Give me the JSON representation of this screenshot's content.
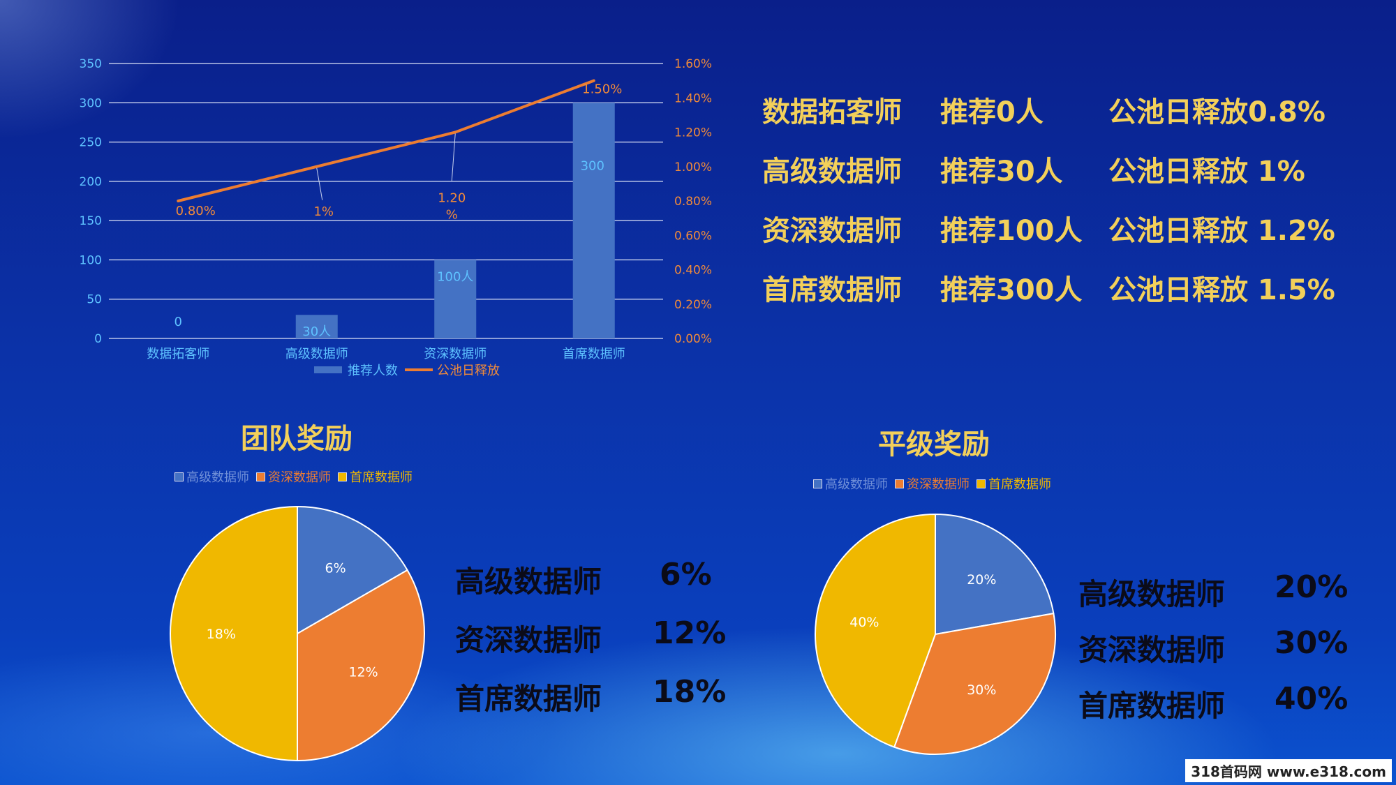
{
  "colors": {
    "bar": "#4472c4",
    "line": "#ed7d31",
    "gold": "#f3d05a",
    "pie": [
      "#4472c4",
      "#ed7d31",
      "#f0b800"
    ],
    "axis_left": "#5ec2ff",
    "axis_right": "#f08a3a"
  },
  "chart_data": [
    {
      "type": "bar+line",
      "categories": [
        "数据拓客师",
        "高级数据师",
        "资深数据师",
        "首席数据师"
      ],
      "series": [
        {
          "name": "推荐人数",
          "type": "bar",
          "axis": "left",
          "values": [
            0,
            30,
            100,
            300
          ],
          "labels": [
            "0",
            "30人",
            "100人",
            "300"
          ]
        },
        {
          "name": "公池日释放",
          "type": "line",
          "axis": "right",
          "values": [
            0.8,
            1.0,
            1.2,
            1.5
          ],
          "labels": [
            "0.80%",
            "1%",
            "1.20\n%",
            "1.50%"
          ]
        }
      ],
      "y_left": {
        "min": 0,
        "max": 350,
        "ticks": [
          "0",
          "50",
          "100",
          "150",
          "200",
          "250",
          "300",
          "350"
        ]
      },
      "y_right": {
        "min": 0,
        "max": 1.6,
        "ticks": [
          "0.00%",
          "0.20%",
          "0.40%",
          "0.60%",
          "0.80%",
          "1.00%",
          "1.20%",
          "1.40%",
          "1.60%"
        ]
      },
      "grid": true,
      "legend": "bottom"
    },
    {
      "type": "pie",
      "title": "团队奖励",
      "labels": [
        "高级数据师",
        "资深数据师",
        "首席数据师"
      ],
      "values": [
        6,
        12,
        18
      ],
      "value_labels": [
        "6%",
        "12%",
        "18%"
      ],
      "legend": "top"
    },
    {
      "type": "pie",
      "title": "平级奖励",
      "labels": [
        "高级数据师",
        "资深数据师",
        "首席数据师"
      ],
      "values": [
        20,
        30,
        40
      ],
      "value_labels": [
        "20%",
        "30%",
        "40%"
      ],
      "legend": "top"
    }
  ],
  "info": [
    {
      "level": "数据拓客师",
      "recommend": "推荐0人",
      "release": "公池日释放0.8%"
    },
    {
      "level": "高级数据师",
      "recommend": "推荐30人",
      "release": "公池日释放 1%"
    },
    {
      "level": "资深数据师",
      "recommend": "推荐100人",
      "release": "公池日释放 1.2%"
    },
    {
      "level": "首席数据师",
      "recommend": "推荐300人",
      "release": "公池日释放 1.5%"
    }
  ],
  "team": {
    "rows": [
      {
        "name": "高级数据师",
        "pct": "6%"
      },
      {
        "name": "资深数据师",
        "pct": "12%"
      },
      {
        "name": "首席数据师",
        "pct": "18%"
      }
    ]
  },
  "peer": {
    "rows": [
      {
        "name": "高级数据师",
        "pct": "20%"
      },
      {
        "name": "资深数据师",
        "pct": "30%"
      },
      {
        "name": "首席数据师",
        "pct": "40%"
      }
    ]
  },
  "watermark": "318首码网 www.e318.com"
}
